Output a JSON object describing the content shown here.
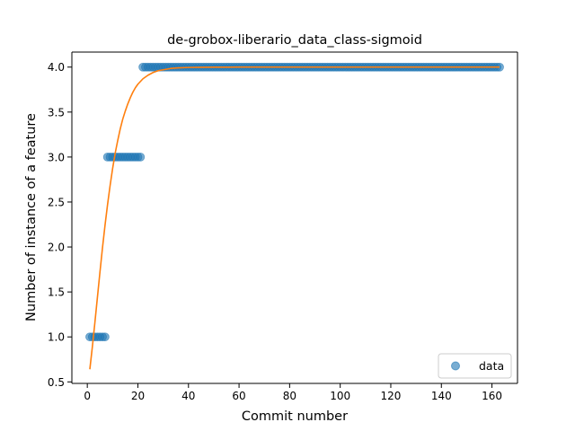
{
  "chart_data": {
    "type": "scatter",
    "title": "de-grobox-liberario_data_class-sigmoid",
    "xlabel": "Commit number",
    "ylabel": "Number of instance of a feature",
    "xlim": [
      -6.1,
      170.1
    ],
    "ylim": [
      0.483,
      4.167
    ],
    "xticks": [
      0,
      20,
      40,
      60,
      80,
      100,
      120,
      140,
      160
    ],
    "yticks": [
      0.5,
      1.0,
      1.5,
      2.0,
      2.5,
      3.0,
      3.5,
      4.0
    ],
    "xtick_labels": [
      "0",
      "20",
      "40",
      "60",
      "80",
      "100",
      "120",
      "140",
      "160"
    ],
    "ytick_labels": [
      "0.5",
      "1.0",
      "1.5",
      "2.0",
      "2.5",
      "3.0",
      "3.5",
      "4.0"
    ],
    "grid": false,
    "legend": {
      "position": "lower-right",
      "entries": [
        "data"
      ]
    },
    "series": [
      {
        "name": "data",
        "kind": "scatter",
        "color": "#1f77b4",
        "segments": [
          {
            "x_from": 1,
            "x_to": 7,
            "y": 1.0
          },
          {
            "x_from": 8,
            "x_to": 21,
            "y": 3.0
          },
          {
            "x_from": 22,
            "x_to": 163,
            "y": 4.0
          }
        ]
      },
      {
        "kind": "line",
        "color": "#ff7f0e",
        "x": [
          1,
          2,
          3,
          4,
          5,
          6,
          7,
          8,
          9,
          10,
          11,
          12,
          13,
          14,
          15,
          16,
          17,
          18,
          19,
          20,
          22,
          24,
          26,
          28,
          30,
          33,
          36,
          40,
          45,
          50,
          60,
          80,
          100,
          120,
          140,
          163
        ],
        "y": [
          0.64,
          0.89,
          1.16,
          1.44,
          1.72,
          1.99,
          2.24,
          2.47,
          2.68,
          2.87,
          3.04,
          3.18,
          3.31,
          3.42,
          3.51,
          3.59,
          3.66,
          3.72,
          3.77,
          3.81,
          3.87,
          3.91,
          3.94,
          3.96,
          3.97,
          3.985,
          3.992,
          3.996,
          3.998,
          3.999,
          4.0,
          4.0,
          4.0,
          4.0,
          4.0,
          4.0
        ]
      }
    ]
  }
}
